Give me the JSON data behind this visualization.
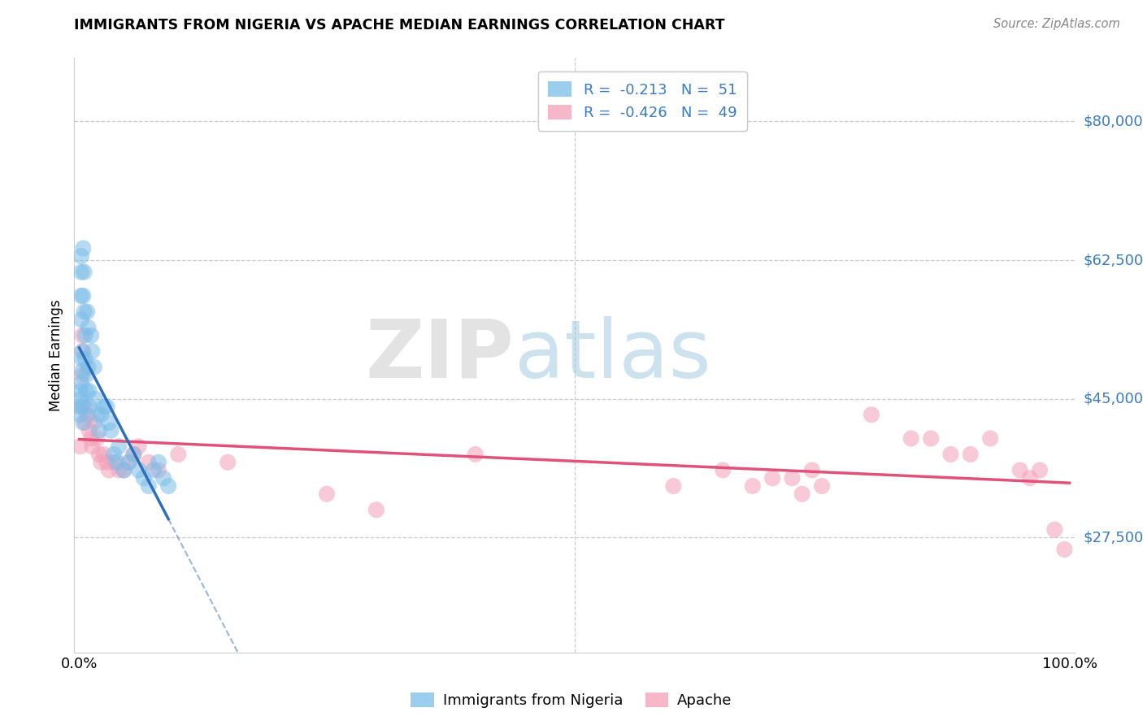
{
  "title": "IMMIGRANTS FROM NIGERIA VS APACHE MEDIAN EARNINGS CORRELATION CHART",
  "source": "Source: ZipAtlas.com",
  "ylabel": "Median Earnings",
  "ytick_values": [
    27500,
    45000,
    62500,
    80000
  ],
  "ymin": 13000,
  "ymax": 88000,
  "xmin": -0.005,
  "xmax": 1.005,
  "color_blue": "#7abde8",
  "color_pink": "#f4a0b8",
  "line_blue": "#2e6fba",
  "line_pink": "#e0527a",
  "nigeria_x": [
    0.001,
    0.001,
    0.001,
    0.002,
    0.002,
    0.002,
    0.002,
    0.003,
    0.003,
    0.003,
    0.004,
    0.004,
    0.005,
    0.005,
    0.006,
    0.006,
    0.007,
    0.007,
    0.008,
    0.009,
    0.009,
    0.01,
    0.01,
    0.012,
    0.013,
    0.015,
    0.016,
    0.018,
    0.02,
    0.022,
    0.025,
    0.028,
    0.03,
    0.032,
    0.035,
    0.038,
    0.04,
    0.045,
    0.05,
    0.055,
    0.06,
    0.065,
    0.07,
    0.075,
    0.08,
    0.085,
    0.09,
    0.001,
    0.002,
    0.003,
    0.004
  ],
  "nigeria_y": [
    46000,
    45000,
    44000,
    63000,
    61000,
    58000,
    55000,
    51000,
    50000,
    48500,
    64000,
    58000,
    61000,
    56000,
    53000,
    50000,
    48000,
    46000,
    56000,
    54000,
    49000,
    46000,
    44000,
    53000,
    51000,
    49000,
    45000,
    43000,
    41000,
    43000,
    44000,
    44000,
    42000,
    41000,
    38000,
    37000,
    39000,
    36000,
    37000,
    38000,
    36000,
    35000,
    34000,
    36000,
    37000,
    35000,
    34000,
    43000,
    47000,
    44000,
    42000
  ],
  "apache_x": [
    0.001,
    0.003,
    0.003,
    0.004,
    0.005,
    0.006,
    0.008,
    0.01,
    0.012,
    0.013,
    0.015,
    0.018,
    0.02,
    0.022,
    0.025,
    0.028,
    0.03,
    0.035,
    0.04,
    0.045,
    0.05,
    0.055,
    0.06,
    0.07,
    0.08,
    0.1,
    0.15,
    0.25,
    0.3,
    0.4,
    0.6,
    0.65,
    0.68,
    0.7,
    0.72,
    0.73,
    0.74,
    0.75,
    0.8,
    0.84,
    0.86,
    0.88,
    0.9,
    0.92,
    0.95,
    0.96,
    0.97,
    0.985,
    0.995
  ],
  "apache_y": [
    39000,
    53000,
    48000,
    51000,
    44000,
    42000,
    43000,
    41000,
    40000,
    39000,
    42000,
    40000,
    38000,
    37000,
    38000,
    37000,
    36000,
    37000,
    36000,
    36000,
    37000,
    38000,
    39000,
    37000,
    36000,
    38000,
    37000,
    33000,
    31000,
    38000,
    34000,
    36000,
    34000,
    35000,
    35000,
    33000,
    36000,
    34000,
    43000,
    40000,
    40000,
    38000,
    38000,
    40000,
    36000,
    35000,
    36000,
    28500,
    26000
  ]
}
